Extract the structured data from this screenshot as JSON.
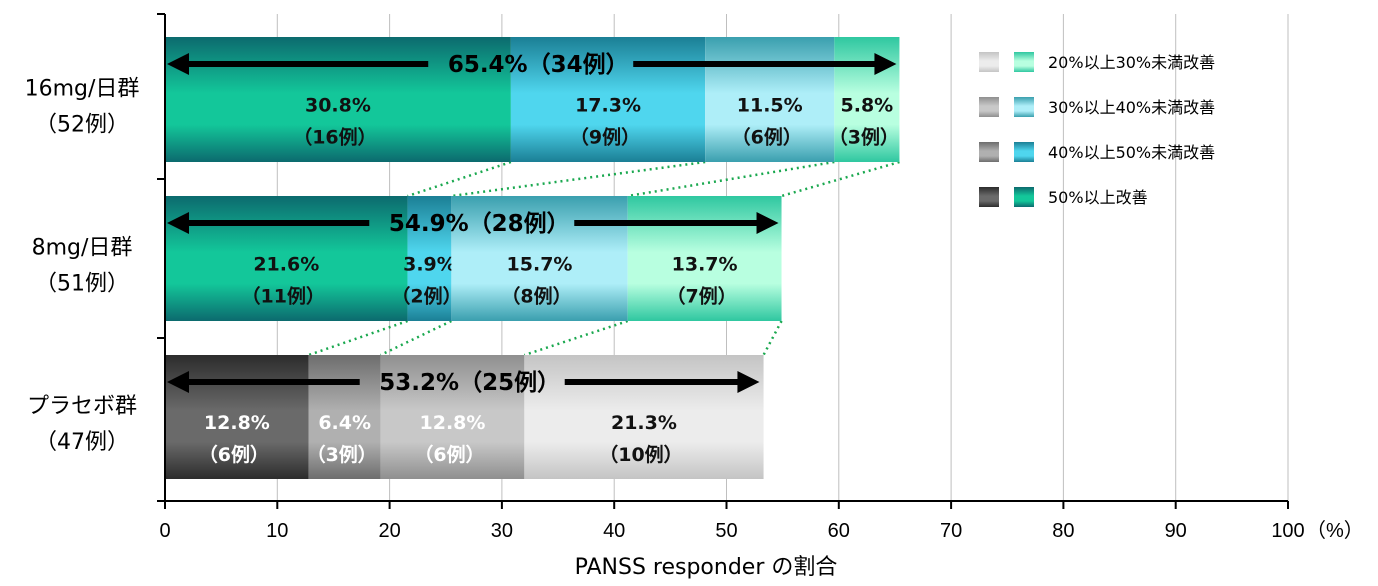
{
  "chart_data": {
    "type": "bar",
    "orientation": "horizontal",
    "stacked": true,
    "xlabel": "PANSS responder の割合",
    "x_unit": "（%）",
    "xlim": [
      0,
      100
    ],
    "x_ticks": [
      "0",
      "10",
      "20",
      "30",
      "40",
      "50",
      "60",
      "70",
      "80",
      "90",
      "100"
    ],
    "grid": true,
    "legend_position": "top-right",
    "legend": [
      "20%以上30%未満改善",
      "30%以上40%未満改善",
      "40%以上50%未満改善",
      "50%以上改善"
    ],
    "categories": [
      {
        "label_line1": "16mg/日群",
        "label_line2": "（52例）",
        "total_label": "65.4%（34例）",
        "total": 65.4,
        "palette": "green",
        "segments": [
          {
            "value": 30.8,
            "pct": "30.8%",
            "count": "（16例）",
            "level": "50%以上改善"
          },
          {
            "value": 17.3,
            "pct": "17.3%",
            "count": "（9例）",
            "level": "40%以上50%未満改善"
          },
          {
            "value": 11.5,
            "pct": "11.5%",
            "count": "（6例）",
            "level": "30%以上40%未満改善"
          },
          {
            "value": 5.8,
            "pct": "5.8%",
            "count": "（3例）",
            "level": "20%以上30%未満改善"
          }
        ]
      },
      {
        "label_line1": "8mg/日群",
        "label_line2": "（51例）",
        "total_label": "54.9%（28例）",
        "total": 54.9,
        "palette": "green",
        "segments": [
          {
            "value": 21.6,
            "pct": "21.6%",
            "count": "（11例）",
            "level": "50%以上改善"
          },
          {
            "value": 3.9,
            "pct": "3.9%",
            "count": "（2例）",
            "level": "40%以上50%未満改善"
          },
          {
            "value": 15.7,
            "pct": "15.7%",
            "count": "（8例）",
            "level": "30%以上40%未満改善"
          },
          {
            "value": 13.7,
            "pct": "13.7%",
            "count": "（7例）",
            "level": "20%以上30%未満改善"
          }
        ]
      },
      {
        "label_line1": "プラセボ群",
        "label_line2": "（47例）",
        "total_label": "53.2%（25例）",
        "total": 53.2,
        "palette": "gray",
        "segments": [
          {
            "value": 12.8,
            "pct": "12.8%",
            "count": "（6例）",
            "level": "50%以上改善"
          },
          {
            "value": 6.4,
            "pct": "6.4%",
            "count": "（3例）",
            "level": "40%以上50%未満改善"
          },
          {
            "value": 12.8,
            "pct": "12.8%",
            "count": "（6例）",
            "level": "30%以上40%未満改善"
          },
          {
            "value": 21.3,
            "pct": "21.3%",
            "count": "（10例）",
            "level": "20%以上30%未満改善"
          }
        ]
      }
    ],
    "colors": {
      "green": [
        "#13c79a",
        "#4fd6ee",
        "#aeeef8",
        "#b8ffe0"
      ],
      "green_dark": [
        "#0c6a6e",
        "#1b7f95",
        "#3a9fae",
        "#2fc7a0"
      ],
      "gray": [
        "#2c2c2c",
        "#6d6d6d",
        "#8f8f8f",
        "#c4c4c4"
      ],
      "gray_light": [
        "#6a6a6a",
        "#b0b0b0",
        "#c8c8c8",
        "#ececec"
      ],
      "connector": "#1aa84f",
      "grid": "#bfbfbf",
      "axis": "#000000"
    }
  }
}
